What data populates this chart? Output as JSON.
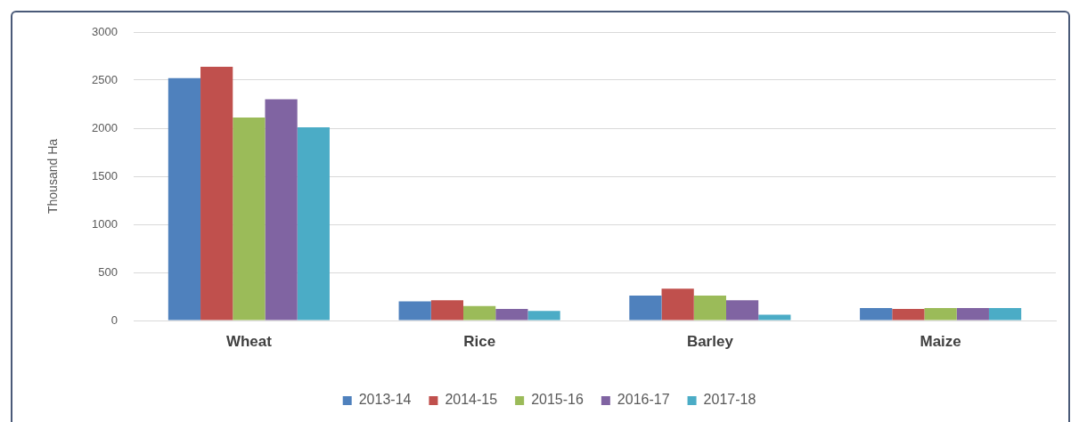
{
  "chart_data": {
    "type": "bar",
    "ylabel": "Thousand Ha",
    "categories": [
      "Wheat",
      "Rice",
      "Barley",
      "Maize"
    ],
    "series": [
      {
        "name": "2013-14",
        "color": "#4f81bd",
        "values": [
          2520,
          200,
          260,
          130
        ]
      },
      {
        "name": "2014-15",
        "color": "#c0504d",
        "values": [
          2640,
          210,
          330,
          120
        ]
      },
      {
        "name": "2015-16",
        "color": "#9bbb59",
        "values": [
          2110,
          150,
          260,
          130
        ]
      },
      {
        "name": "2016-17",
        "color": "#8064a2",
        "values": [
          2300,
          120,
          210,
          130
        ]
      },
      {
        "name": "2017-18",
        "color": "#4bacc6",
        "values": [
          2010,
          100,
          60,
          130
        ]
      }
    ],
    "ylim": [
      0,
      3000
    ],
    "yticks": [
      0,
      500,
      1000,
      1500,
      2000,
      2500,
      3000
    ],
    "grid": "y",
    "legend": "bottom"
  }
}
